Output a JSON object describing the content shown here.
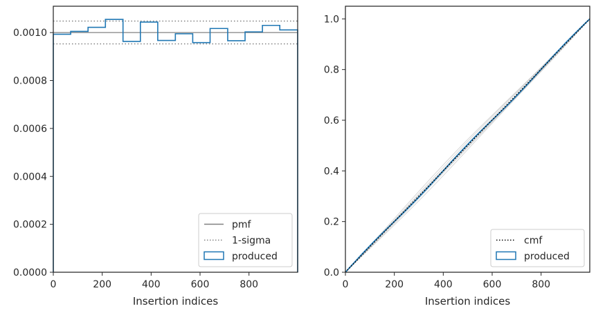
{
  "chart_data": [
    {
      "type": "histogram",
      "xlabel": "Insertion indices",
      "ylabel": "",
      "xlim": [
        0,
        999
      ],
      "ylim": [
        0,
        0.00111
      ],
      "xticks": [
        0,
        200,
        400,
        600,
        800
      ],
      "yticks": [
        0.0,
        0.0002,
        0.0004,
        0.0006,
        0.0008,
        0.001
      ],
      "ytick_labels": [
        "0.0000",
        "0.0002",
        "0.0004",
        "0.0006",
        "0.0008",
        "0.0010"
      ],
      "grid": false,
      "legend_position": "bottom-right",
      "pmf": 0.001,
      "sigma_upper": 0.001048,
      "sigma_lower": 0.000953,
      "bin_edges": [
        0,
        71,
        142,
        213,
        285,
        356,
        427,
        499,
        570,
        641,
        713,
        784,
        855,
        926,
        999
      ],
      "values": [
        0.000993,
        0.001005,
        0.001022,
        0.001055,
        0.000963,
        0.001044,
        0.000967,
        0.000995,
        0.000958,
        0.001017,
        0.000966,
        0.001003,
        0.00103,
        0.001011
      ],
      "series": [
        {
          "name": "pmf",
          "style": "solid",
          "color": "#808080"
        },
        {
          "name": "1-sigma",
          "style": "dotted",
          "color": "#808080"
        },
        {
          "name": "produced",
          "style": "step",
          "color": "#1f77b4"
        }
      ]
    },
    {
      "type": "line",
      "xlabel": "Insertion indices",
      "ylabel": "",
      "xlim": [
        0,
        999
      ],
      "ylim": [
        0,
        1.05
      ],
      "xticks": [
        0,
        200,
        400,
        600,
        800
      ],
      "yticks": [
        0.0,
        0.2,
        0.4,
        0.6,
        0.8,
        1.0
      ],
      "ytick_labels": [
        "0.0",
        "0.2",
        "0.4",
        "0.6",
        "0.8",
        "1.0"
      ],
      "grid": false,
      "legend_position": "bottom-right",
      "x": [
        0,
        999
      ],
      "cmf": [
        0,
        1.0
      ],
      "series": [
        {
          "name": "cmf",
          "style": "dotted",
          "color": "#000000"
        },
        {
          "name": "produced",
          "style": "step",
          "color": "#1f77b4"
        }
      ]
    }
  ]
}
